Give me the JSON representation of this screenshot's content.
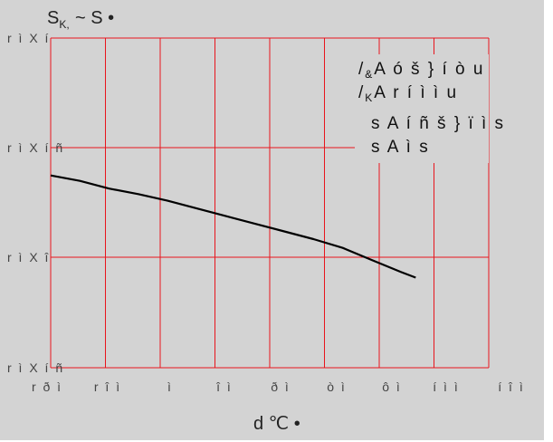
{
  "chart_data": {
    "type": "line",
    "ylabel": "S",
    "ylabel_sub": "K, ",
    "ylabel_rest": "~ S •",
    "xlabel": "d ℃ •",
    "xlim": [
      -40,
      110
    ],
    "ylim": [
      0,
      3
    ],
    "y_tick_labels": [
      "r ì X í ñ",
      "r ì X î",
      "r ì X í ñ",
      "r ì X í"
    ],
    "x_tick_labels": [
      "r ð ì",
      "r î ì",
      "ì",
      "î ì",
      "ð ì",
      "ò ì",
      "ô ì",
      "í ì ì",
      "í î ì"
    ],
    "grid": true,
    "series": [
      {
        "color": "#000000",
        "x": [
          -40,
          -30,
          -20,
          -10,
          0,
          10,
          20,
          30,
          40,
          50,
          60,
          70,
          80,
          85
        ],
        "y": [
          1.75,
          1.7,
          1.63,
          1.58,
          1.52,
          1.45,
          1.38,
          1.31,
          1.24,
          1.17,
          1.09,
          0.98,
          0.87,
          0.82
        ]
      }
    ],
    "legend": {
      "placement": "top-right",
      "lines": [
        {
          "prefix": "/",
          "sub": "&",
          "text": "A ó  š }  í ò u"
        },
        {
          "prefix": "/",
          "sub": "K",
          "text": "A r í ì ì u"
        },
        {
          "prefix": "",
          "sub": "",
          "text": "s  A í ñ  š }  ï ì s"
        },
        {
          "prefix": "",
          "sub": "",
          "text": "s  A ì s"
        }
      ]
    },
    "colors": {
      "grid": "#e8141c",
      "background": "#d3d3d3",
      "line": "#000000"
    }
  }
}
